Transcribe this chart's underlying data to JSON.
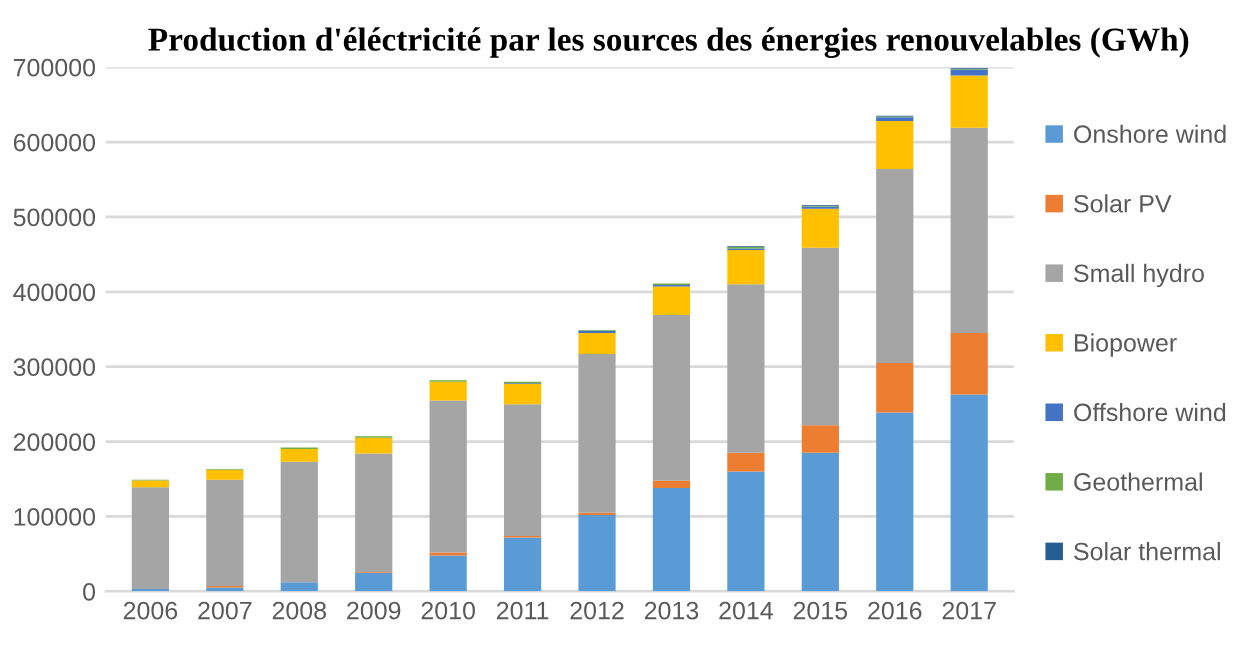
{
  "chart_data": {
    "type": "bar",
    "title": "Production d'éléctricité par les sources des énergies renouvelables (GWh)",
    "stacked": true,
    "categories": [
      "2006",
      "2007",
      "2008",
      "2009",
      "2010",
      "2011",
      "2012",
      "2013",
      "2014",
      "2015",
      "2016",
      "2017"
    ],
    "series": [
      {
        "name": "Onshore wind",
        "color": "#5b9bd5",
        "values": [
          3000,
          5000,
          12000,
          25000,
          48000,
          72000,
          102000,
          138000,
          160000,
          185000,
          239000,
          263000
        ]
      },
      {
        "name": "Solar PV",
        "color": "#ed7d31",
        "values": [
          0,
          2000,
          0,
          1000,
          4000,
          2000,
          3000,
          10000,
          25000,
          37000,
          66000,
          82000
        ]
      },
      {
        "name": "Small hydro",
        "color": "#a5a5a5",
        "values": [
          136000,
          142000,
          161000,
          158000,
          203000,
          176000,
          212000,
          221000,
          225000,
          237000,
          259000,
          274000
        ]
      },
      {
        "name": "Biopower",
        "color": "#ffc000",
        "values": [
          9000,
          13000,
          17000,
          21000,
          25000,
          27000,
          28000,
          38000,
          46000,
          52000,
          64000,
          70000
        ]
      },
      {
        "name": "Offshore wind",
        "color": "#4472c4",
        "values": [
          0,
          0,
          0,
          0,
          0,
          1000,
          3000,
          2000,
          2000,
          3000,
          5000,
          8000
        ]
      },
      {
        "name": "Geothermal",
        "color": "#70ad47",
        "values": [
          1000,
          1000,
          2000,
          2000,
          2000,
          2000,
          1000,
          2000,
          2000,
          1000,
          1000,
          1000
        ]
      },
      {
        "name": "Solar thermal",
        "color": "#255e91",
        "values": [
          0,
          0,
          0,
          0,
          0,
          0,
          0,
          0,
          1000,
          1000,
          1000,
          1000
        ]
      }
    ],
    "ylim": [
      0,
      700000
    ],
    "yticks": [
      0,
      100000,
      200000,
      300000,
      400000,
      500000,
      600000,
      700000
    ],
    "grid": "y",
    "legend": "right"
  }
}
